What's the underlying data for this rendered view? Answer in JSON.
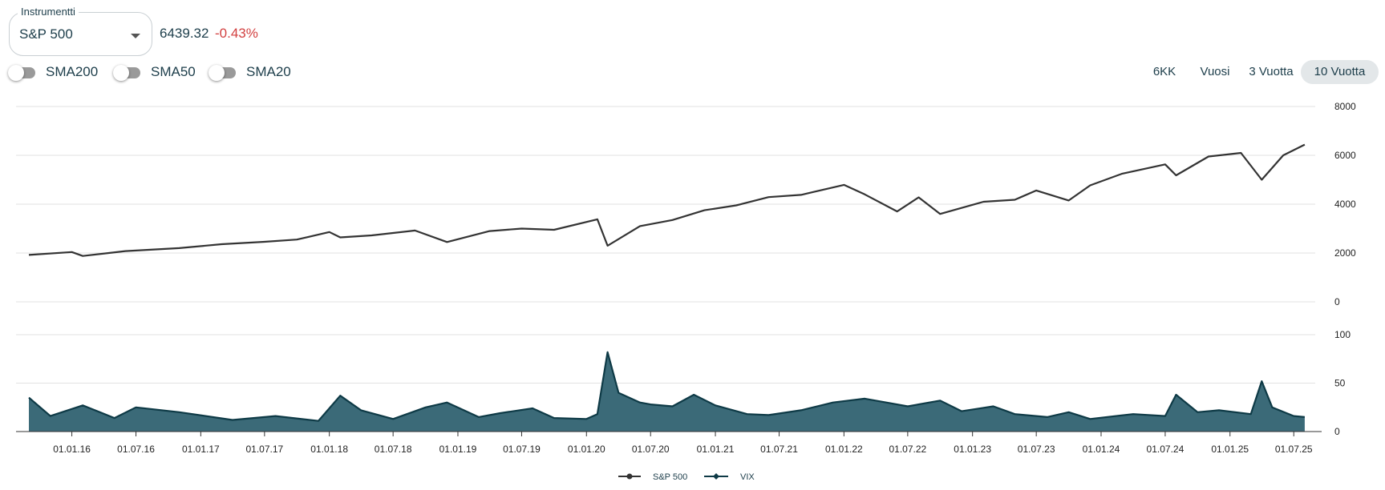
{
  "instrument": {
    "legend": "Instrumentti",
    "selected": "S&P 500"
  },
  "quote": {
    "price": "6439.32",
    "change": "-0.43%"
  },
  "toggles": [
    {
      "label": "SMA200",
      "on": false
    },
    {
      "label": "SMA50",
      "on": false
    },
    {
      "label": "SMA20",
      "on": false
    }
  ],
  "ranges": [
    {
      "label": "6KK",
      "active": false
    },
    {
      "label": "Vuosi",
      "active": false
    },
    {
      "label": "3 Vuotta",
      "active": false
    },
    {
      "label": "10 Vuotta",
      "active": true
    }
  ],
  "colors": {
    "price_line": "#333333",
    "vix_fill": "#3b6a78",
    "vix_line": "#0e3a46",
    "change_negative": "#d23f3f"
  },
  "chart_data": [
    {
      "type": "line",
      "series": [
        {
          "name": "S&P 500"
        }
      ],
      "x": [
        "2015-09",
        "2016-01",
        "2016-02",
        "2016-06",
        "2016-11",
        "2017-03",
        "2017-07",
        "2017-10",
        "2018-01",
        "2018-02",
        "2018-05",
        "2018-09",
        "2018-12",
        "2019-04",
        "2019-07",
        "2019-10",
        "2020-02",
        "2020-03",
        "2020-06",
        "2020-09",
        "2020-12",
        "2021-03",
        "2021-06",
        "2021-09",
        "2022-01",
        "2022-03",
        "2022-06",
        "2022-08",
        "2022-10",
        "2023-02",
        "2023-05",
        "2023-07",
        "2023-10",
        "2023-12",
        "2024-03",
        "2024-07",
        "2024-08",
        "2024-11",
        "2025-02",
        "2025-04",
        "2025-06",
        "2025-08"
      ],
      "y": [
        1920,
        2040,
        1880,
        2080,
        2200,
        2360,
        2460,
        2550,
        2860,
        2640,
        2720,
        2920,
        2450,
        2900,
        3000,
        2950,
        3380,
        2300,
        3100,
        3350,
        3750,
        3950,
        4290,
        4380,
        4790,
        4400,
        3700,
        4280,
        3600,
        4100,
        4180,
        4560,
        4150,
        4770,
        5250,
        5630,
        5180,
        5950,
        6100,
        5000,
        6000,
        6440
      ],
      "ylim": [
        0,
        8000
      ],
      "yticks": [
        0,
        2000,
        4000,
        6000,
        8000
      ]
    },
    {
      "type": "area",
      "series": [
        {
          "name": "VIX"
        }
      ],
      "x": [
        "2015-09",
        "2015-11",
        "2016-02",
        "2016-05",
        "2016-07",
        "2016-11",
        "2017-04",
        "2017-08",
        "2017-12",
        "2018-02",
        "2018-04",
        "2018-07",
        "2018-10",
        "2018-12",
        "2019-03",
        "2019-05",
        "2019-08",
        "2019-10",
        "2020-01",
        "2020-02",
        "2020-03",
        "2020-04",
        "2020-06",
        "2020-07",
        "2020-09",
        "2020-11",
        "2021-01",
        "2021-04",
        "2021-06",
        "2021-09",
        "2021-12",
        "2022-03",
        "2022-05",
        "2022-07",
        "2022-10",
        "2022-12",
        "2023-03",
        "2023-05",
        "2023-08",
        "2023-10",
        "2023-12",
        "2024-04",
        "2024-07",
        "2024-08",
        "2024-10",
        "2024-12",
        "2025-03",
        "2025-04",
        "2025-05",
        "2025-07",
        "2025-08"
      ],
      "y": [
        35,
        16,
        27,
        14,
        25,
        20,
        12,
        16,
        11,
        37,
        22,
        13,
        25,
        30,
        15,
        19,
        24,
        14,
        13,
        18,
        82,
        40,
        30,
        28,
        26,
        38,
        27,
        18,
        17,
        22,
        30,
        34,
        30,
        26,
        32,
        21,
        26,
        18,
        15,
        20,
        13,
        18,
        16,
        38,
        20,
        22,
        18,
        52,
        25,
        16,
        15
      ],
      "ylim": [
        0,
        100
      ],
      "yticks": [
        0,
        50,
        100
      ]
    }
  ],
  "x_axis": {
    "tick_labels": [
      "01.01.16",
      "01.07.16",
      "01.01.17",
      "01.07.17",
      "01.01.18",
      "01.07.18",
      "01.01.19",
      "01.07.19",
      "01.01.20",
      "01.07.20",
      "01.01.21",
      "01.07.21",
      "01.01.22",
      "01.07.22",
      "01.01.23",
      "01.07.23",
      "01.01.24",
      "01.07.24",
      "01.01.25",
      "01.07.25"
    ]
  },
  "legend": [
    {
      "name": "S&P 500"
    },
    {
      "name": "VIX"
    }
  ]
}
